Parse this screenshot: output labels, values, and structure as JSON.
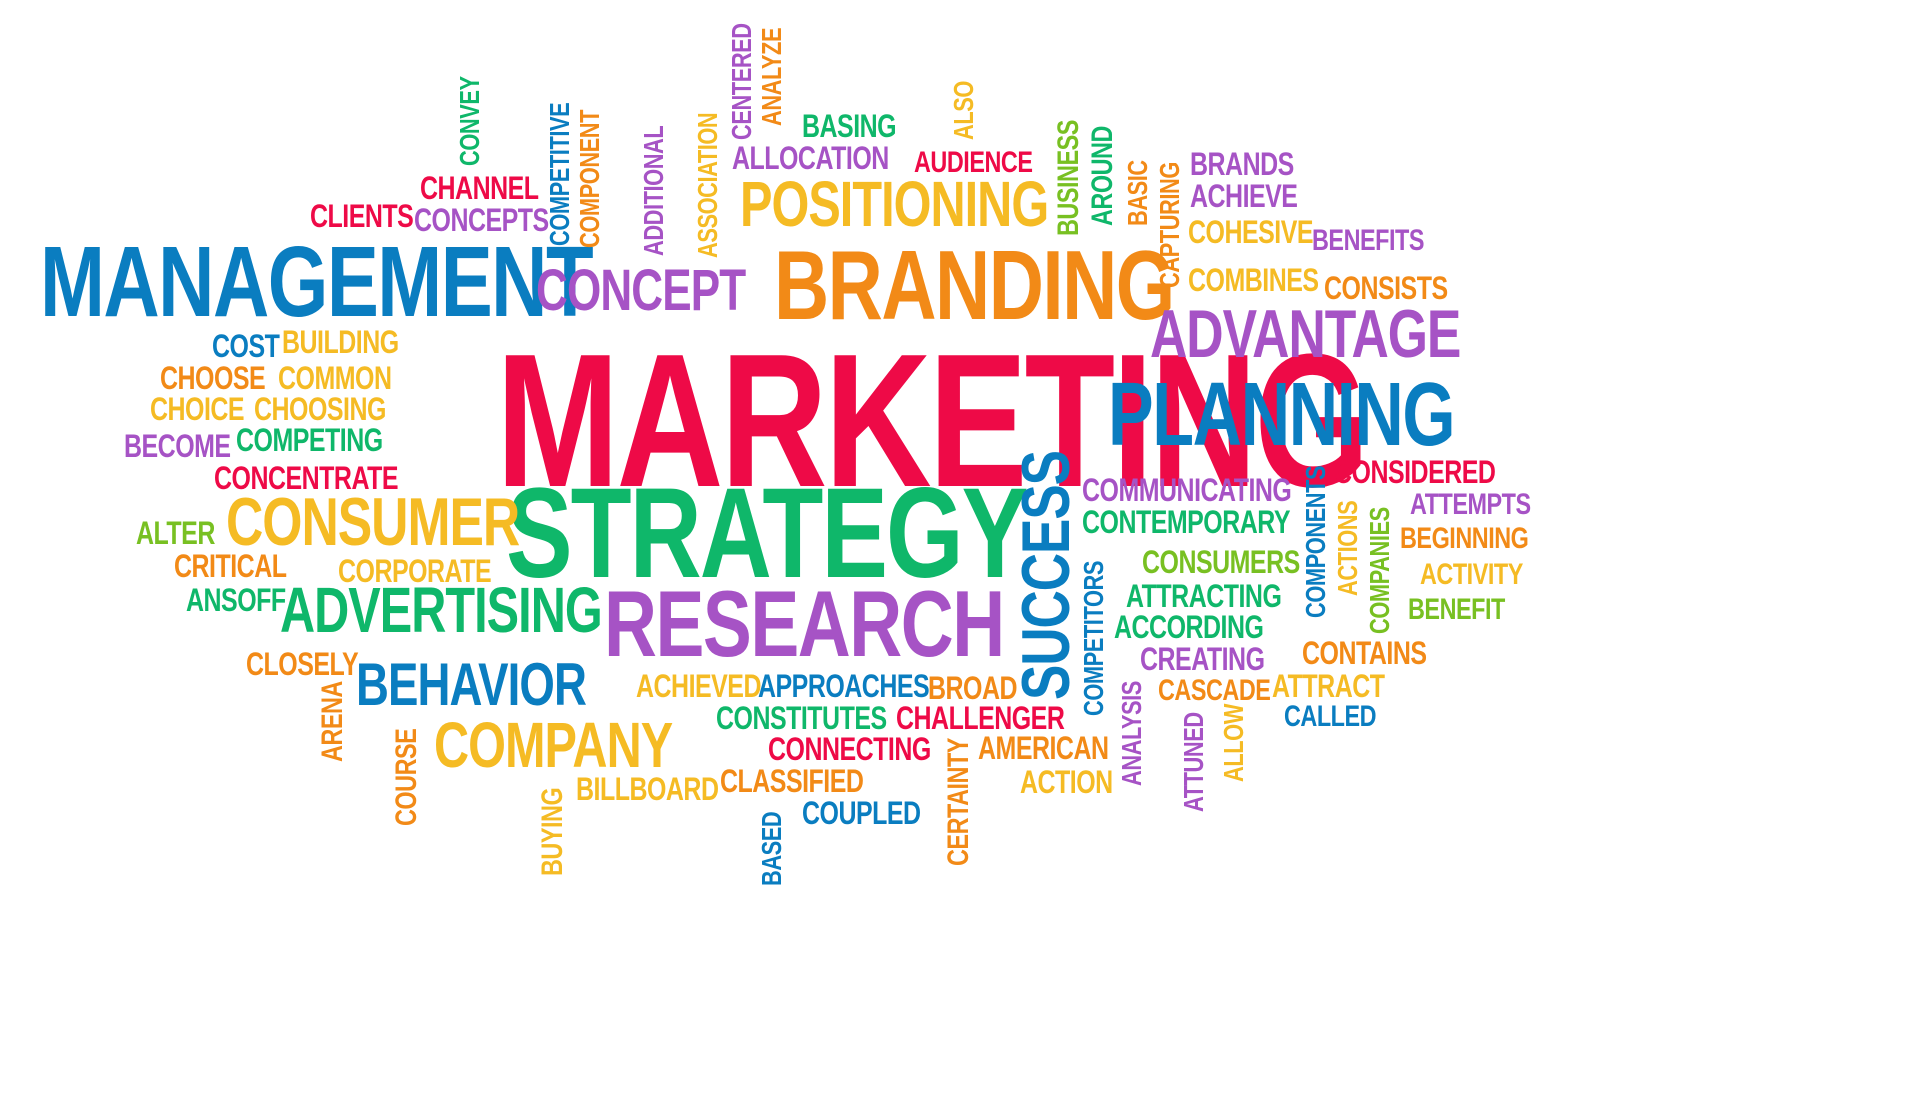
{
  "words": {
    "marketing": "MARKETING",
    "strategy": "STRATEGY",
    "research": "RESEARCH",
    "management": "MANAGEMENT",
    "branding": "BRANDING",
    "planning": "PLANNING",
    "advantage": "ADVANTAGE",
    "positioning": "POSITIONING",
    "concept": "CONCEPT",
    "consumer": "CONSUMER",
    "advertising": "ADVERTISING",
    "behavior": "BEHAVIOR",
    "company": "COMPANY",
    "success": "SUCCESS",
    "communicating": "COMMUNICATING",
    "contemporary": "CONTEMPORARY",
    "consumers": "CONSUMERS",
    "attracting": "ATTRACTING",
    "according": "ACCORDING",
    "creating": "CREATING",
    "cascade": "CASCADE",
    "attract": "ATTRACT",
    "called": "CALLED",
    "contains": "CONTAINS",
    "considered": "CONSIDERED",
    "attempts": "ATTEMPTS",
    "beginning": "BEGINNING",
    "activity": "ACTIVITY",
    "benefit": "BENEFIT",
    "components": "COMPONENTS",
    "actions": "ACTIONS",
    "companies": "COMPANIES",
    "competitors": "COMPETITORS",
    "analysis": "ANALYSIS",
    "attuned": "ATTUNED",
    "allow": "ALLOW",
    "american": "AMERICAN",
    "action": "ACTION",
    "certainty": "CERTAINTY",
    "challenger": "CHALLENGER",
    "connecting": "CONNECTING",
    "classified": "CLASSIFIED",
    "coupled": "COUPLED",
    "based": "BASED",
    "constitutes": "CONSTITUTES",
    "approaches": "APPROACHES",
    "broad": "BROAD",
    "achieved": "ACHIEVED",
    "billboard": "BILLBOARD",
    "buying": "BUYING",
    "course": "COURSE",
    "arena": "ARENA",
    "closely": "CLOSELY",
    "ansoff": "ANSOFF",
    "critical": "CRITICAL",
    "corporate": "CORPORATE",
    "alter": "ALTER",
    "concentrate": "CONCENTRATE",
    "become": "BECOME",
    "competing": "COMPETING",
    "choice": "CHOICE",
    "choosing": "CHOOSING",
    "choose": "CHOOSE",
    "common": "COMMON",
    "cost": "COST",
    "building": "BUILDING",
    "clients": "CLIENTS",
    "channel": "CHANNEL",
    "concepts": "CONCEPTS",
    "convey": "CONVEY",
    "competitive": "COMPETITIVE",
    "component": "COMPONENT",
    "additional": "ADDITIONAL",
    "association": "ASSOCIATION",
    "centered": "CENTERED",
    "analyze": "ANALYZE",
    "basing": "BASING",
    "allocation": "ALLOCATION",
    "also": "ALSO",
    "audience": "AUDIENCE",
    "business": "BUSINESS",
    "around": "AROUND",
    "basic": "BASIC",
    "capturing": "CAPTURING",
    "brands": "BRANDS",
    "achieve": "ACHIEVE",
    "cohesive": "COHESIVE",
    "benefits": "BENEFITS",
    "combines": "COMBINES",
    "consists": "CONSISTS"
  },
  "colors": {
    "red": "#ee0a47",
    "purple": "#a653c5",
    "blue": "#0a7dc0",
    "green": "#0fb76a",
    "orange": "#f28a17",
    "yellow": "#f5bb24",
    "lime": "#78c022",
    "background": "#ffffff"
  }
}
